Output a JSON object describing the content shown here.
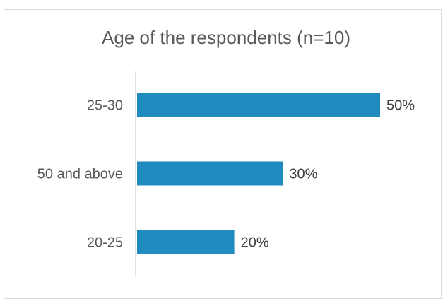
{
  "chart_data": {
    "type": "bar",
    "orientation": "horizontal",
    "title": "Age of the respondents (n=10)",
    "categories": [
      "25-30",
      "50 and above",
      "20-25"
    ],
    "values": [
      50,
      30,
      20
    ],
    "value_labels": [
      "50%",
      "30%",
      "20%"
    ],
    "unit": "%",
    "xlim": [
      0,
      50
    ],
    "bar_color": "#1f8bbf",
    "axis_color": "#d9d9d9",
    "grid": false,
    "legend": "none"
  }
}
